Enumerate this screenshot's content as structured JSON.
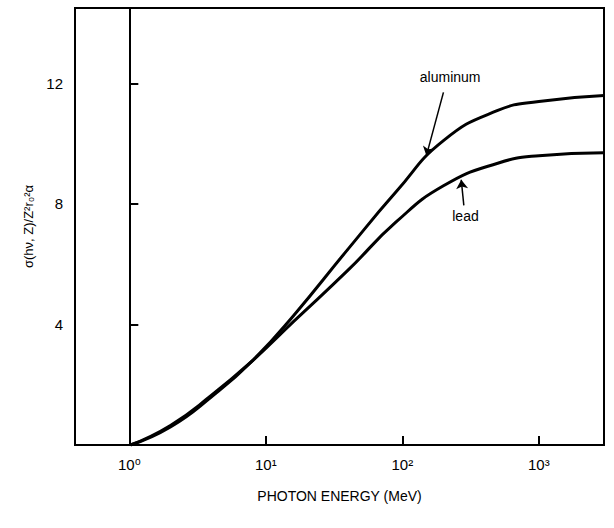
{
  "chart_data": {
    "type": "line",
    "x_label": "PHOTON ENERGY (MeV)",
    "y_label": "σ(hν, Z)/Z²r₀²α",
    "log": "x",
    "grid": false,
    "legend": false,
    "xlim": [
      0.4,
      3000
    ],
    "xticks": [
      {
        "value": 1,
        "label": "10⁰"
      },
      {
        "value": 10,
        "label": "10¹"
      },
      {
        "value": 100,
        "label": "10²"
      },
      {
        "value": 1000,
        "label": "10³"
      }
    ],
    "ylim": [
      0,
      14.5
    ],
    "yticks": [
      4,
      8,
      12
    ],
    "x": [
      1.02,
      2,
      4,
      8,
      16,
      40,
      90,
      200,
      500,
      1000,
      3000
    ],
    "series": [
      {
        "name": "aluminum",
        "color": "#000000",
        "values": [
          0,
          0.6,
          1.6,
          2.8,
          4.3,
          6.5,
          8.4,
          10.1,
          11.1,
          11.4,
          11.6
        ]
      },
      {
        "name": "lead",
        "color": "#000000",
        "values": [
          0,
          0.65,
          1.65,
          2.8,
          4.1,
          5.8,
          7.4,
          8.6,
          9.35,
          9.6,
          9.7
        ]
      }
    ],
    "annotations": [
      {
        "text": "aluminum",
        "x": 224,
        "y": 12.2,
        "arrow_from": [
          200,
          11.7
        ],
        "arrow_to": [
          150,
          9.6
        ]
      },
      {
        "text": "lead",
        "x": 290,
        "y": 7.6,
        "arrow_from": [
          282,
          7.95
        ],
        "arrow_to": [
          270,
          8.8
        ]
      }
    ]
  }
}
